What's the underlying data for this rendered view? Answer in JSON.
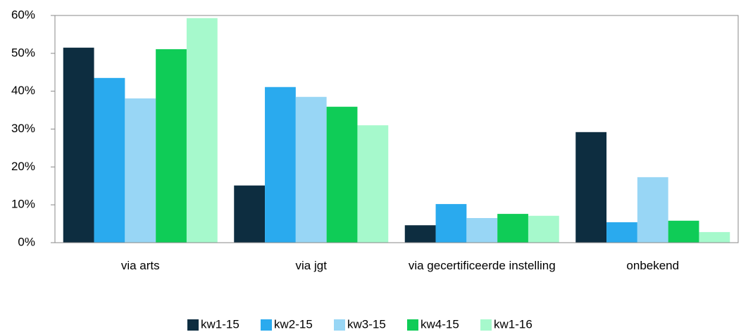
{
  "chart_data": {
    "type": "bar",
    "categories": [
      "via arts",
      "via jgt",
      "via gecertificeerde instelling",
      "onbekend"
    ],
    "series": [
      {
        "name": "kw1-15",
        "color": "#0d2d40",
        "values": [
          51.5,
          15.1,
          4.6,
          29.2
        ]
      },
      {
        "name": "kw2-15",
        "color": "#2aaaee",
        "values": [
          43.5,
          41.1,
          10.2,
          5.4
        ]
      },
      {
        "name": "kw3-15",
        "color": "#98d6f5",
        "values": [
          38.1,
          38.5,
          6.5,
          17.3
        ]
      },
      {
        "name": "kw4-15",
        "color": "#0fcc57",
        "values": [
          51.1,
          35.9,
          7.6,
          5.8
        ]
      },
      {
        "name": "kw1-16",
        "color": "#a6f9cc",
        "values": [
          59.3,
          31.0,
          7.1,
          2.8
        ]
      }
    ],
    "ylim": [
      0,
      60
    ],
    "yticks": [
      {
        "value": 0,
        "label": "0%"
      },
      {
        "value": 10,
        "label": "10%"
      },
      {
        "value": 20,
        "label": "20%"
      },
      {
        "value": 30,
        "label": "30%"
      },
      {
        "value": 40,
        "label": "40%"
      },
      {
        "value": 50,
        "label": "50%"
      },
      {
        "value": 60,
        "label": "60%"
      }
    ],
    "grid": false,
    "legend": "bottom"
  }
}
